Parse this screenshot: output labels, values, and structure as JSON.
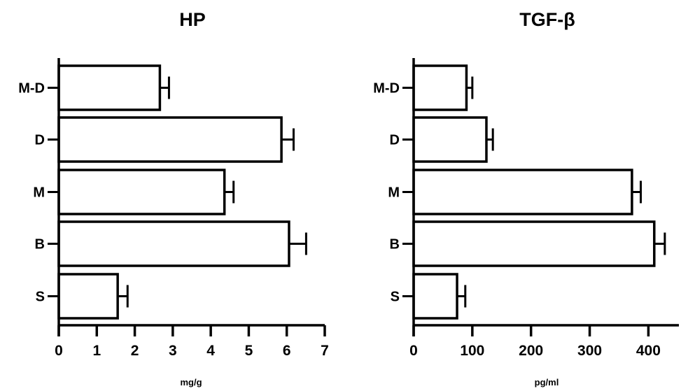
{
  "chart_data": [
    {
      "type": "bar",
      "orientation": "horizontal",
      "title": "HP",
      "xlabel": "mg/g",
      "ylabel": "",
      "categories": [
        "M-D",
        "D",
        "M",
        "B",
        "S"
      ],
      "values": [
        2.66,
        5.86,
        4.36,
        6.06,
        1.55
      ],
      "error_upper": [
        2.9,
        6.18,
        4.6,
        6.51,
        1.81
      ],
      "xlim": [
        0,
        7
      ],
      "xticks": [
        "0",
        "1",
        "2",
        "3",
        "4",
        "5",
        "6",
        "7"
      ],
      "xtick_values": [
        0,
        1,
        2,
        3,
        4,
        5,
        6,
        7
      ],
      "grid": false
    },
    {
      "type": "bar",
      "orientation": "horizontal",
      "title": "TGF-β",
      "xlabel": "pg/ml",
      "ylabel": "",
      "categories": [
        "M-D",
        "D",
        "M",
        "B",
        "S"
      ],
      "values": [
        90,
        124,
        372,
        410,
        74
      ],
      "error_upper": [
        100,
        135,
        387,
        428,
        88
      ],
      "xlim": [
        0,
        452
      ],
      "xticks": [
        "0",
        "100",
        "200",
        "300",
        "400"
      ],
      "xtick_values": [
        0,
        100,
        200,
        300,
        400
      ],
      "grid": false
    }
  ]
}
